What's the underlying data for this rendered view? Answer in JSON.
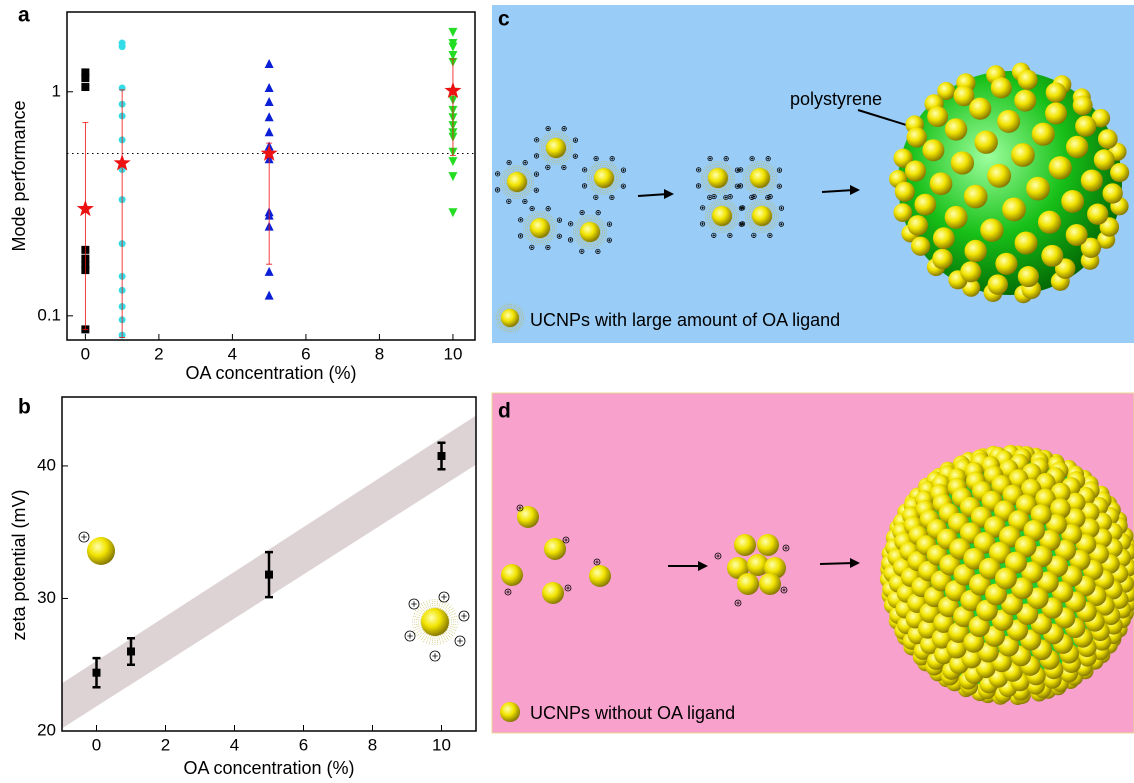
{
  "chart_data": [
    {
      "type": "scatter",
      "panel_label": "a",
      "y_label": "Mode performance",
      "x_label": "OA concentration (%)",
      "log_y": true,
      "xlim": [
        -0.5,
        10.6
      ],
      "ylim": [
        0.078,
        2.27
      ],
      "xticks": [
        0,
        2,
        4,
        6,
        8,
        10
      ],
      "yticks": [
        0.1,
        1
      ],
      "reference_line": 0.53,
      "series": [
        {
          "color": "#000000",
          "marker": "square",
          "x": [
            0,
            0,
            0,
            0,
            0,
            0,
            0,
            0
          ],
          "values": [
            1.22,
            1.15,
            1.05,
            0.197,
            0.18,
            0.169,
            0.16,
            0.087
          ]
        },
        {
          "color": "#33dde8",
          "marker": "circle",
          "x": [
            1,
            1,
            1,
            1,
            1,
            1,
            1,
            1,
            1,
            1,
            1,
            1,
            1,
            1
          ],
          "values": [
            1.65,
            1.59,
            1.04,
            0.88,
            0.78,
            0.61,
            0.45,
            0.33,
            0.21,
            0.15,
            0.13,
            0.11,
            0.096,
            0.082
          ]
        },
        {
          "color": "#0b1fd6",
          "marker": "triangle",
          "x": [
            5,
            5,
            5,
            5,
            5,
            5,
            5,
            5,
            5,
            5,
            5,
            5,
            5
          ],
          "values": [
            1.33,
            1.04,
            0.9,
            0.77,
            0.66,
            0.57,
            0.53,
            0.5,
            0.29,
            0.28,
            0.25,
            0.157,
            0.123
          ]
        },
        {
          "color": "#22dd22",
          "marker": "triangle-down",
          "x": [
            10,
            10,
            10,
            10,
            10,
            10,
            10,
            10,
            10,
            10,
            10,
            10,
            10,
            10,
            10,
            10
          ],
          "values": [
            1.85,
            1.65,
            1.59,
            1.46,
            1.36,
            1.0,
            0.92,
            0.83,
            0.77,
            0.71,
            0.66,
            0.63,
            0.54,
            0.49,
            0.42,
            0.29
          ]
        },
        {
          "color": "#ee1111",
          "marker": "star",
          "x": [
            0,
            1,
            5,
            10
          ],
          "values": [
            0.3,
            0.48,
            0.53,
            1.01
          ],
          "error_low": [
            0.087,
            0.08,
            0.17,
            0.52
          ],
          "error_high": [
            0.73,
            1.02,
            0.59,
            1.4
          ]
        }
      ]
    },
    {
      "type": "scatter",
      "panel_label": "b",
      "y_label": "zeta potential (mV)",
      "x_label": "OA concentration (%)",
      "xlim": [
        -1,
        11
      ],
      "ylim": [
        20,
        45.2
      ],
      "xticks": [
        0,
        2,
        4,
        6,
        8,
        10
      ],
      "yticks": [
        20,
        30,
        40
      ],
      "band": {
        "x": [
          -1,
          11
        ],
        "lower": [
          20.2,
          40.1
        ],
        "upper": [
          23.6,
          43.8
        ],
        "color": "#ddd3d5"
      },
      "series": [
        {
          "color": "#000000",
          "marker": "square",
          "x": [
            0,
            1,
            5,
            10
          ],
          "values": [
            24.4,
            26.0,
            31.8,
            40.75
          ],
          "errors": [
            1.1,
            1.0,
            1.7,
            1.0
          ]
        }
      ]
    }
  ],
  "diagram_c": {
    "panel_label": "c",
    "callout": "polystyrene",
    "legend": "UCNPs with large amount of OA ligand"
  },
  "diagram_d": {
    "panel_label": "d",
    "legend": "UCNPs without OA ligand"
  }
}
